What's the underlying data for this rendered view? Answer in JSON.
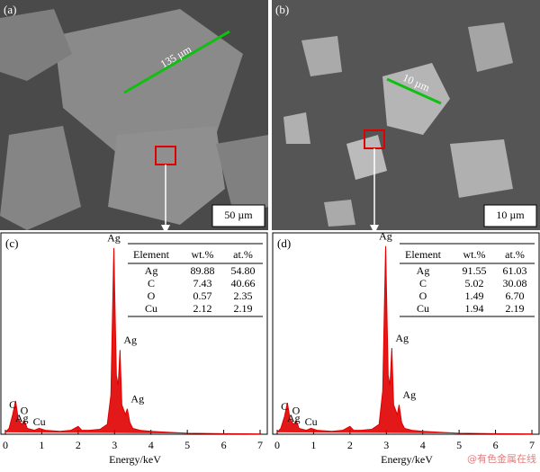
{
  "panels": [
    {
      "label": "(a)",
      "scale_bar": "50 µm",
      "measure": "135 µm"
    },
    {
      "label": "(b)",
      "scale_bar": "10 µm",
      "measure": "10 µm"
    }
  ],
  "chart_data": [
    {
      "type": "line",
      "label": "(c)",
      "x_label": "Energy/keV",
      "xlim": [
        0,
        7
      ],
      "xticks": [
        0,
        1,
        2,
        3,
        4,
        5,
        6,
        7
      ],
      "ylim": [
        0,
        100
      ],
      "color": "#e00000",
      "x": [
        0,
        0.1,
        0.2,
        0.28,
        0.35,
        0.45,
        0.52,
        0.6,
        0.8,
        0.93,
        1.1,
        1.5,
        1.8,
        2.0,
        2.1,
        2.3,
        2.6,
        2.8,
        2.9,
        2.98,
        3.05,
        3.1,
        3.15,
        3.2,
        3.3,
        3.35,
        3.42,
        3.5,
        3.7,
        4.0,
        4.5,
        5.0,
        6.0,
        7.0
      ],
      "values": [
        1,
        3,
        10,
        17,
        8,
        5,
        7,
        3,
        2,
        3,
        2,
        1.5,
        2,
        4,
        2,
        2,
        2.5,
        5,
        20,
        95,
        30,
        25,
        43,
        15,
        10,
        13,
        6,
        3,
        2,
        1.5,
        1,
        0.5,
        0.3,
        0.2
      ],
      "annotations": [
        {
          "text": "C",
          "x": 0.2
        },
        {
          "text": "O",
          "x": 0.52
        },
        {
          "text": "Ag",
          "x": 0.45
        },
        {
          "text": "Cu",
          "x": 0.93
        },
        {
          "text": "Ag",
          "x": 2.98
        },
        {
          "text": "Ag",
          "x": 3.15
        },
        {
          "text": "Ag",
          "x": 3.35
        }
      ],
      "table": {
        "header": [
          "Element",
          "wt.%",
          "at.%"
        ],
        "rows": [
          [
            "Ag",
            "89.88",
            "54.80"
          ],
          [
            "C",
            "7.43",
            "40.66"
          ],
          [
            "O",
            "0.57",
            "2.35"
          ],
          [
            "Cu",
            "2.12",
            "2.19"
          ]
        ]
      }
    },
    {
      "type": "line",
      "label": "(d)",
      "x_label": "Energy/keV",
      "xlim": [
        0,
        7
      ],
      "xticks": [
        0,
        1,
        2,
        3,
        4,
        5,
        6,
        7
      ],
      "ylim": [
        0,
        100
      ],
      "color": "#e00000",
      "x": [
        0,
        0.1,
        0.2,
        0.28,
        0.35,
        0.45,
        0.52,
        0.6,
        0.8,
        0.93,
        1.1,
        1.5,
        1.8,
        2.0,
        2.1,
        2.3,
        2.6,
        2.8,
        2.9,
        2.98,
        3.05,
        3.1,
        3.15,
        3.2,
        3.3,
        3.35,
        3.42,
        3.5,
        3.7,
        4.0,
        4.5,
        5.0,
        6.0,
        7.0
      ],
      "values": [
        1,
        3,
        9,
        16,
        8,
        5,
        7,
        3,
        2,
        3,
        2,
        1.5,
        2,
        4,
        2,
        2,
        2.5,
        5,
        22,
        96,
        30,
        25,
        44,
        15,
        10,
        15,
        6,
        3,
        2,
        1.5,
        1,
        0.5,
        0.3,
        0.2
      ],
      "annotations": [
        {
          "text": "C",
          "x": 0.2
        },
        {
          "text": "O",
          "x": 0.52
        },
        {
          "text": "Ag",
          "x": 0.45
        },
        {
          "text": "Cu",
          "x": 0.93
        },
        {
          "text": "Ag",
          "x": 2.98
        },
        {
          "text": "Ag",
          "x": 3.15
        },
        {
          "text": "Ag",
          "x": 3.35
        }
      ],
      "table": {
        "header": [
          "Element",
          "wt.%",
          "at.%"
        ],
        "rows": [
          [
            "Ag",
            "91.55",
            "61.03"
          ],
          [
            "C",
            "5.02",
            "30.08"
          ],
          [
            "O",
            "1.49",
            "6.70"
          ],
          [
            "Cu",
            "1.94",
            "2.19"
          ]
        ]
      }
    }
  ],
  "watermark": "@有色金属在线"
}
